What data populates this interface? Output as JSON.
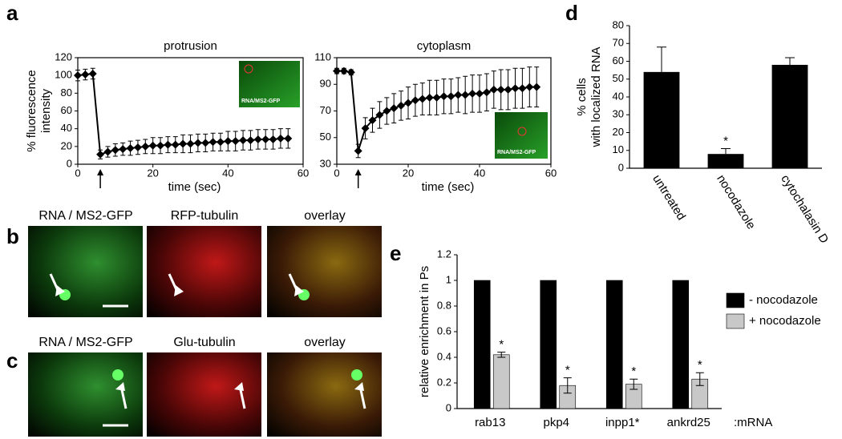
{
  "panel_labels": [
    "a",
    "b",
    "c",
    "d",
    "e"
  ],
  "images": {
    "b": [
      "RNA / MS2-GFP",
      "RFP-tubulin",
      "overlay"
    ],
    "c": [
      "RNA / MS2-GFP",
      "Glu-tubulin",
      "overlay"
    ]
  },
  "chart_data": [
    {
      "type": "line",
      "title": "protrusion",
      "y_label": "% fluorescence intensity",
      "x_label": "time  (sec)",
      "inset_label": "RNA/MS2-GFP",
      "x": [
        0,
        2,
        4,
        6,
        8,
        10,
        12,
        14,
        16,
        18,
        20,
        22,
        24,
        26,
        28,
        30,
        32,
        34,
        36,
        38,
        40,
        42,
        44,
        46,
        48,
        50,
        52,
        54,
        56
      ],
      "values": [
        100,
        101,
        102,
        11,
        14,
        16,
        17,
        18,
        19,
        20,
        21,
        21,
        22,
        22,
        23,
        23,
        24,
        24,
        25,
        25,
        26,
        26,
        27,
        27,
        28,
        28,
        28,
        29,
        29
      ],
      "errors": [
        6,
        6,
        6,
        5,
        6,
        7,
        7,
        8,
        8,
        8,
        9,
        9,
        9,
        9,
        10,
        10,
        10,
        10,
        10,
        10,
        11,
        11,
        11,
        11,
        11,
        11,
        11,
        11,
        11
      ],
      "color": "#000000",
      "xlim": [
        0,
        60
      ],
      "xticks": [
        0,
        20,
        40,
        60
      ],
      "ylim": [
        0,
        120
      ],
      "yticks": [
        0,
        20,
        40,
        60,
        80,
        100,
        120
      ]
    },
    {
      "type": "line",
      "title": "cytoplasm",
      "x_label": "time  (sec)",
      "inset_label": "RNA/MS2-GFP",
      "x": [
        0,
        2,
        4,
        6,
        8,
        10,
        12,
        14,
        16,
        18,
        20,
        22,
        24,
        26,
        28,
        30,
        32,
        34,
        36,
        38,
        40,
        42,
        44,
        46,
        48,
        50,
        52,
        54,
        56
      ],
      "values": [
        100,
        100,
        99,
        40,
        57,
        63,
        67,
        70,
        72,
        74,
        76,
        78,
        79,
        80,
        80,
        81,
        81,
        82,
        82,
        83,
        83,
        84,
        86,
        86,
        86,
        87,
        87,
        88,
        88
      ],
      "errors": [
        2,
        2,
        2,
        5,
        8,
        9,
        10,
        10,
        11,
        11,
        12,
        12,
        12,
        13,
        13,
        13,
        13,
        13,
        14,
        14,
        14,
        14,
        14,
        15,
        15,
        15,
        15,
        15,
        15
      ],
      "color": "#000000",
      "xlim": [
        0,
        60
      ],
      "xticks": [
        0,
        20,
        40,
        60
      ],
      "ylim": [
        30,
        110
      ],
      "yticks": [
        30,
        50,
        70,
        90,
        110
      ]
    },
    {
      "type": "bar",
      "y_label": "% cells with localized RNA",
      "categories": [
        "untreated",
        "nocodazole",
        "cytochalasin D"
      ],
      "values": [
        54,
        8,
        58
      ],
      "errors": [
        14,
        3,
        4
      ],
      "significance": [
        null,
        "*",
        null
      ],
      "color": "#000000",
      "ylim": [
        0,
        80
      ],
      "yticks": [
        0,
        10,
        20,
        30,
        40,
        50,
        60,
        70,
        80
      ]
    },
    {
      "type": "grouped_bar",
      "y_label": "relative enrichment in Ps",
      "x_suffix": ":mRNA",
      "categories": [
        "rab13",
        "pkp4",
        "inpp1*",
        "ankrd25"
      ],
      "series": [
        {
          "name": "- nocodazole",
          "color": "#000000",
          "values": [
            1,
            1,
            1,
            1
          ]
        },
        {
          "name": "+ nocodazole",
          "color": "#c8c8c8",
          "values": [
            0.42,
            0.18,
            0.19,
            0.23
          ],
          "errors": [
            0.02,
            0.06,
            0.04,
            0.05
          ],
          "significance": [
            "*",
            "*",
            "*",
            "*"
          ]
        }
      ],
      "ylim": [
        0,
        1.2
      ],
      "yticks": [
        0,
        0.2,
        0.4,
        0.6,
        0.8,
        1,
        1.2
      ]
    }
  ]
}
